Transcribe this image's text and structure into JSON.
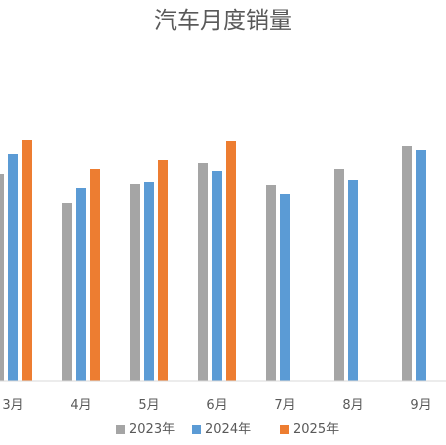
{
  "chart_data": {
    "type": "bar",
    "title": "汽车月度销量",
    "xlabel": "",
    "ylabel": "",
    "categories": [
      "3月",
      "4月",
      "5月",
      "6月",
      "7月",
      "8月",
      "9月"
    ],
    "series": [
      {
        "name": "2023年",
        "color": "#A5A5A5",
        "values": [
          207,
          178,
          197,
          218,
          196,
          212,
          235
        ]
      },
      {
        "name": "2024年",
        "color": "#5B9BD5",
        "values": [
          227,
          193,
          199,
          210,
          187,
          201,
          231
        ]
      },
      {
        "name": "2025年",
        "color": "#ED7D31",
        "values": [
          241,
          212,
          221,
          240,
          null,
          null,
          null
        ]
      }
    ],
    "ylim": [
      0,
      260
    ],
    "grid": false,
    "legend_position": "bottom",
    "axis_color": "#D9D9D9"
  }
}
